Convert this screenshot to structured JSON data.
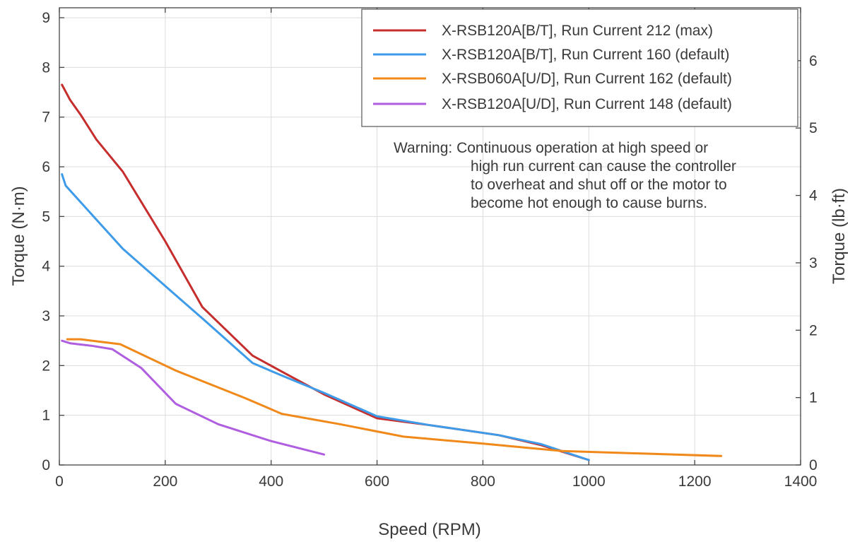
{
  "chart_data": {
    "type": "line",
    "title": "",
    "xlabel": "Speed (RPM)",
    "ylabel": "Torque (N·m)",
    "y2label": "Torque (lb·ft)",
    "xlim": [
      0,
      1400
    ],
    "ylim": [
      0,
      9.2
    ],
    "y2lim": [
      0,
      6.785
    ],
    "x_ticks": [
      0,
      200,
      400,
      600,
      800,
      1000,
      1200,
      1400
    ],
    "y_ticks": [
      0,
      1,
      2,
      3,
      4,
      5,
      6,
      7,
      8,
      9
    ],
    "y2_ticks": [
      0,
      1,
      2,
      3,
      4,
      5,
      6
    ],
    "grid": true,
    "legend_position": "top-right",
    "series": [
      {
        "name": "X-RSB120A[B/T], Run Current 212 (max)",
        "color": "#c62d2d",
        "x": [
          5,
          10,
          20,
          40,
          70,
          120,
          200,
          270,
          365,
          420,
          500,
          600,
          700,
          830,
          910,
          1000
        ],
        "y": [
          7.65,
          7.55,
          7.35,
          7.05,
          6.55,
          5.9,
          4.5,
          3.18,
          2.2,
          1.88,
          1.42,
          0.94,
          0.8,
          0.6,
          0.4,
          0.1
        ]
      },
      {
        "name": "X-RSB120A[B/T], Run Current 160 (default)",
        "color": "#3d9be9",
        "x": [
          5,
          12,
          35,
          120,
          200,
          270,
          365,
          420,
          500,
          600,
          700,
          830,
          910,
          1000
        ],
        "y": [
          5.85,
          5.62,
          5.35,
          4.35,
          3.6,
          2.95,
          2.05,
          1.8,
          1.45,
          0.98,
          0.8,
          0.6,
          0.42,
          0.1
        ]
      },
      {
        "name": "X-RSB060A[U/D], Run Current 162 (default)",
        "color": "#f0891a",
        "x": [
          15,
          40,
          115,
          220,
          350,
          420,
          530,
          650,
          800,
          950,
          1100,
          1250
        ],
        "y": [
          2.53,
          2.53,
          2.43,
          1.9,
          1.35,
          1.03,
          0.82,
          0.57,
          0.43,
          0.28,
          0.23,
          0.18
        ]
      },
      {
        "name": "X-RSB120A[U/D], Run Current 148 (default)",
        "color": "#b05ee0",
        "x": [
          5,
          20,
          60,
          100,
          155,
          220,
          300,
          400,
          500
        ],
        "y": [
          2.5,
          2.45,
          2.4,
          2.33,
          1.95,
          1.23,
          0.82,
          0.48,
          0.21
        ]
      }
    ],
    "annotation": [
      "Warning: Continuous operation at high speed or",
      "high run current can cause the controller",
      "to overheat and shut off or the motor to",
      "become hot enough to cause burns."
    ]
  }
}
